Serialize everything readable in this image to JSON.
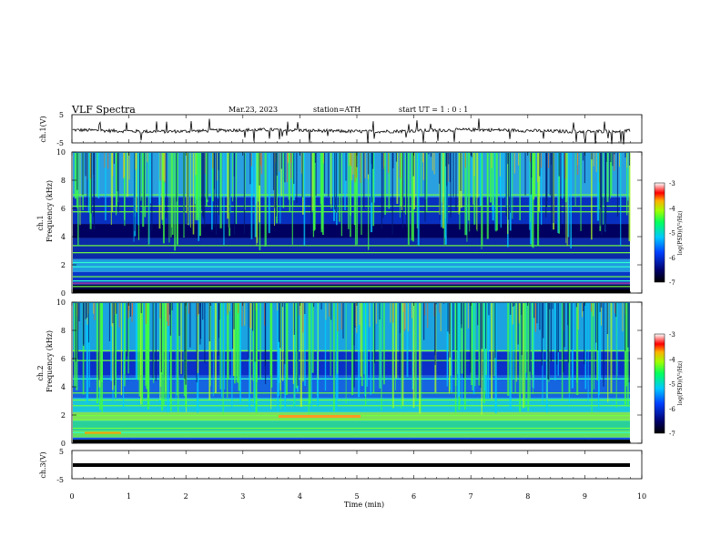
{
  "header": {
    "title": "VLF  Spectra",
    "date": "Mar.23, 2023",
    "station": "station=ATH",
    "start": "start  UT  =   1 : 0  : 1"
  },
  "chart_data": [
    {
      "type": "line",
      "title": "",
      "ylabel": "ch.1(V)",
      "ylim": [
        -5,
        5
      ],
      "yticks": [
        "5",
        "-5"
      ],
      "description_level": -0.5
    },
    {
      "type": "heatmap",
      "ylabel_channel": "ch.1",
      "ylabel": "Frequency  (kHz)",
      "ylim": [
        0,
        10
      ],
      "yticks": [
        "0",
        "2",
        "4",
        "6",
        "8",
        "10"
      ],
      "xlim": [
        0,
        10
      ],
      "colorbar": {
        "label": "log(PSD)(V²/Hz)",
        "range": [
          -7,
          -3
        ],
        "ticks": [
          "-3",
          "-4",
          "-5",
          "-6",
          "-7"
        ]
      }
    },
    {
      "type": "heatmap",
      "ylabel_channel": "ch.2",
      "ylabel": "Frequency  (kHz)",
      "ylim": [
        0,
        10
      ],
      "yticks": [
        "0",
        "2",
        "4",
        "6",
        "8",
        "10"
      ],
      "xlim": [
        0,
        10
      ],
      "colorbar": {
        "label": "log(PSD)(V²/Hz)",
        "range": [
          -7,
          -3
        ],
        "ticks": [
          "-3",
          "-4",
          "-5",
          "-6",
          "-7"
        ]
      }
    },
    {
      "type": "line",
      "ylabel": "ch.3(V)",
      "ylim": [
        -5,
        5
      ],
      "yticks": [
        "5",
        "-5"
      ],
      "level": 0
    }
  ],
  "xaxis": {
    "label": "Time  (min)",
    "ticks": [
      "0",
      "1",
      "2",
      "3",
      "4",
      "5",
      "6",
      "7",
      "8",
      "9",
      "10"
    ],
    "range": [
      0,
      10
    ]
  },
  "colors": {
    "low": "#00005a",
    "mid": "#00a0ff",
    "high": "#33ff33",
    "peak": "#ff3300"
  }
}
